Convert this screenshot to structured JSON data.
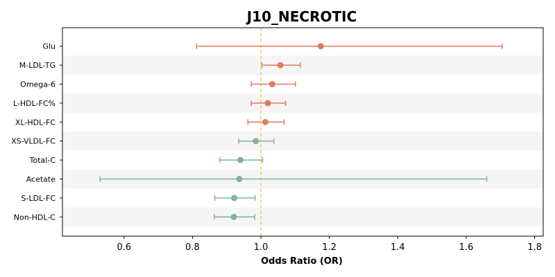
{
  "chart_data": {
    "type": "forest",
    "title": "J10_NECROTIC",
    "xlabel": "Odds Ratio (OR)",
    "ylabel": "",
    "xlim": [
      0.42,
      1.825
    ],
    "xticks": [
      0.6,
      0.8,
      1.0,
      1.2,
      1.4,
      1.6,
      1.8
    ],
    "xtick_labels": [
      "0.6",
      "0.8",
      "1.0",
      "1.2",
      "1.4",
      "1.6",
      "1.8"
    ],
    "reference_line": 1.0,
    "colors": {
      "positive": "#e07b5f",
      "negative": "#7fb39a",
      "reference": "#f5c77e",
      "stripe": "#f5f5f5",
      "axis": "#000000"
    },
    "grid": false,
    "rows": [
      {
        "label": "Glu",
        "or": 1.175,
        "lo": 0.812,
        "hi": 1.705
      },
      {
        "label": "M-LDL-TG",
        "or": 1.057,
        "lo": 1.003,
        "hi": 1.115
      },
      {
        "label": "Omega-6",
        "or": 1.033,
        "lo": 0.972,
        "hi": 1.101
      },
      {
        "label": "L-HDL-FC%",
        "or": 1.02,
        "lo": 0.972,
        "hi": 1.072
      },
      {
        "label": "XL-HDL-FC",
        "or": 1.013,
        "lo": 0.962,
        "hi": 1.068
      },
      {
        "label": "XS-VLDL-FC",
        "or": 0.985,
        "lo": 0.935,
        "hi": 1.038
      },
      {
        "label": "Total-C",
        "or": 0.94,
        "lo": 0.88,
        "hi": 1.005
      },
      {
        "label": "Acetate",
        "or": 0.937,
        "lo": 0.53,
        "hi": 1.66
      },
      {
        "label": "S-LDL-FC",
        "or": 0.922,
        "lo": 0.865,
        "hi": 0.983
      },
      {
        "label": "Non-HDL-C",
        "or": 0.921,
        "lo": 0.864,
        "hi": 0.982
      }
    ]
  }
}
